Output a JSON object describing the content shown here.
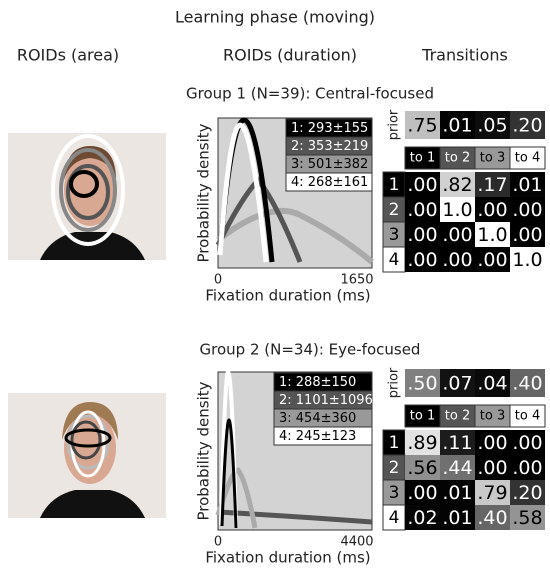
{
  "title": "Learning phase (moving)",
  "columns": [
    "ROIDs (area)",
    "ROIDs (duration)",
    "Transitions"
  ],
  "groups": [
    {
      "label": "Group 1 (N=39): Central-focused",
      "legend": [
        "1: 293±155",
        "2: 353±219",
        "3: 501±382",
        "4: 268±161"
      ],
      "x_axis": {
        "label": "Fixation duration (ms)",
        "min": "0",
        "max": "1650"
      },
      "y_axis": {
        "label": "Probability density"
      },
      "prior_label": "prior",
      "prior": [
        ".75",
        ".01",
        ".05",
        ".20"
      ],
      "to_labels": [
        "to 1",
        "to 2",
        "to 3",
        "to 4"
      ],
      "row_labels": [
        "1",
        "2",
        "3",
        "4"
      ],
      "matrix": [
        [
          ".00",
          ".82",
          ".17",
          ".01"
        ],
        [
          ".00",
          "1.0",
          ".00",
          ".00"
        ],
        [
          ".00",
          ".00",
          "1.0",
          ".00"
        ],
        [
          ".00",
          ".00",
          ".00",
          "1.0"
        ]
      ]
    },
    {
      "label": "Group 2 (N=34): Eye-focused",
      "legend": [
        "1: 288±150",
        "2: 1101±1096",
        "3: 454±360",
        "4: 245±123"
      ],
      "x_axis": {
        "label": "Fixation duration (ms)",
        "min": "0",
        "max": "4400"
      },
      "y_axis": {
        "label": "Probability density"
      },
      "prior_label": "prior",
      "prior": [
        ".50",
        ".07",
        ".04",
        ".40"
      ],
      "to_labels": [
        "to 1",
        "to 2",
        "to 3",
        "to 4"
      ],
      "row_labels": [
        "1",
        "2",
        "3",
        "4"
      ],
      "matrix": [
        [
          ".89",
          ".11",
          ".00",
          ".00"
        ],
        [
          ".56",
          ".44",
          ".00",
          ".00"
        ],
        [
          ".00",
          ".01",
          ".79",
          ".20"
        ],
        [
          ".02",
          ".01",
          ".40",
          ".58"
        ]
      ]
    }
  ]
}
